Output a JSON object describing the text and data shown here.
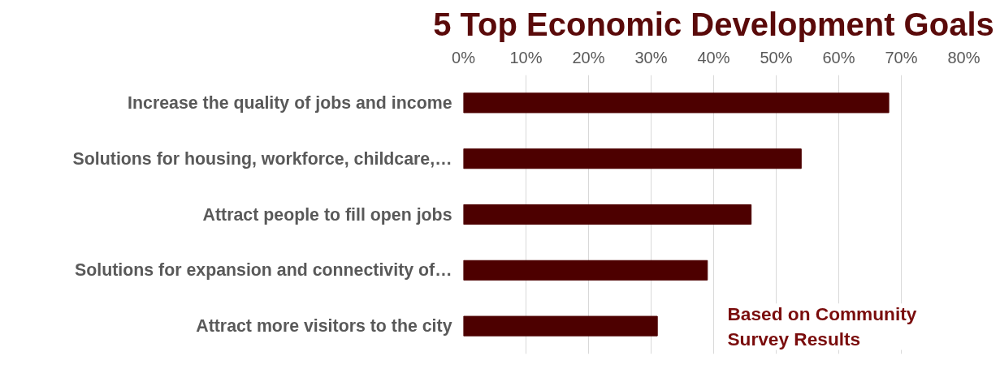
{
  "chart_data": {
    "type": "bar",
    "orientation": "horizontal",
    "title": "5 Top Economic Development Goals",
    "categories": [
      "Increase the quality of jobs and income",
      "Solutions for housing, workforce, childcare,…",
      "Attract people to fill open jobs",
      "Solutions for expansion and connectivity of…",
      "Attract more visitors to the city"
    ],
    "values": [
      68,
      54,
      46,
      39,
      31
    ],
    "color": "#4d0000",
    "xlim": [
      0,
      80
    ],
    "xticks": [
      {
        "value": 0,
        "label": "0%"
      },
      {
        "value": 10,
        "label": "10%"
      },
      {
        "value": 20,
        "label": "20%"
      },
      {
        "value": 30,
        "label": "30%"
      },
      {
        "value": 40,
        "label": "40%"
      },
      {
        "value": 50,
        "label": "50%"
      },
      {
        "value": 60,
        "label": "60%"
      },
      {
        "value": 70,
        "label": "70%"
      },
      {
        "value": 80,
        "label": "80%"
      }
    ],
    "grid": "x",
    "annotations": [
      "Based on Community\nSurvey Results"
    ]
  }
}
